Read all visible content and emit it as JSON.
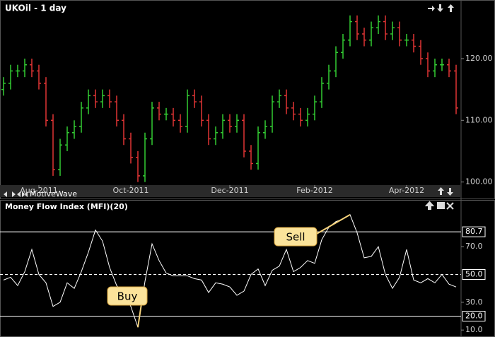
{
  "chart_data": [
    {
      "type": "ohlc",
      "title": "UKOil - 1 day",
      "watermark": "MotiveWave",
      "categories": [
        null,
        null,
        null,
        null,
        null,
        "Aug-2011",
        null,
        null,
        null,
        null,
        null,
        null,
        null,
        null,
        null,
        null,
        null,
        null,
        "Oct-2011",
        null,
        null,
        null,
        null,
        null,
        null,
        null,
        null,
        null,
        null,
        null,
        null,
        null,
        "Dec-2011",
        null,
        null,
        null,
        null,
        null,
        null,
        null,
        null,
        null,
        null,
        null,
        "Feb-2012",
        null,
        null,
        null,
        null,
        null,
        null,
        null,
        null,
        null,
        null,
        null,
        null,
        "Apr-2012",
        null,
        null,
        null,
        null,
        null,
        null,
        null
      ],
      "open": [
        115,
        116,
        118,
        118,
        119,
        118,
        116,
        110,
        102,
        106,
        108,
        109,
        112,
        114,
        113,
        114,
        113,
        110,
        107,
        104,
        101,
        107,
        112,
        111,
        111,
        110,
        109,
        114,
        113,
        110,
        107,
        108,
        110,
        109,
        110,
        105,
        103,
        108,
        109,
        113,
        114,
        112,
        111,
        110,
        111,
        113,
        116,
        118,
        121,
        123,
        126,
        124,
        123,
        125,
        126,
        124,
        125,
        123,
        123,
        122,
        120,
        118,
        119,
        119,
        118
      ],
      "high": [
        117,
        119,
        119,
        120,
        120,
        119,
        117,
        111,
        107,
        109,
        110,
        113,
        115,
        115,
        115,
        115,
        114,
        111,
        108,
        105,
        108,
        113,
        113,
        112,
        112,
        111,
        115,
        115,
        114,
        111,
        109,
        111,
        111,
        111,
        111,
        106,
        109,
        110,
        114,
        115,
        115,
        113,
        112,
        112,
        114,
        117,
        119,
        122,
        124,
        127,
        127,
        125,
        126,
        127,
        127,
        126,
        126,
        124,
        124,
        123,
        121,
        120,
        120,
        120,
        119
      ],
      "low": [
        114,
        115,
        117,
        117,
        117,
        115,
        109,
        101,
        101,
        105,
        107,
        108,
        111,
        112,
        112,
        112,
        109,
        106,
        103,
        100,
        100,
        106,
        110,
        110,
        109,
        108,
        108,
        112,
        109,
        106,
        106,
        107,
        108,
        108,
        104,
        102,
        102,
        107,
        108,
        112,
        111,
        110,
        109,
        109,
        110,
        112,
        115,
        117,
        120,
        122,
        123,
        122,
        122,
        124,
        123,
        123,
        122,
        122,
        121,
        119,
        117,
        117,
        118,
        117,
        111
      ],
      "close": [
        116,
        118,
        118,
        119,
        118,
        116,
        110,
        102,
        106,
        108,
        109,
        112,
        114,
        113,
        114,
        113,
        110,
        107,
        104,
        101,
        107,
        112,
        111,
        111,
        110,
        109,
        114,
        113,
        110,
        107,
        108,
        110,
        109,
        110,
        105,
        103,
        108,
        109,
        113,
        114,
        112,
        111,
        110,
        111,
        113,
        116,
        118,
        121,
        123,
        126,
        124,
        123,
        125,
        126,
        124,
        125,
        123,
        123,
        122,
        120,
        118,
        119,
        119,
        118,
        112
      ],
      "up_color": "#33cc33",
      "down_color": "#e03434",
      "ylim": [
        99.5,
        129.5
      ],
      "yticks": [
        {
          "value": 100,
          "label": "100.00"
        },
        {
          "value": 110,
          "label": "110.00"
        },
        {
          "value": 120,
          "label": "120.00"
        }
      ]
    },
    {
      "type": "line",
      "title": "Money Flow Index (MFI)(20)",
      "color": "#ffffff",
      "values": [
        46,
        48,
        42,
        52,
        68,
        50,
        44,
        27,
        30,
        44,
        40,
        52,
        66,
        82,
        74,
        55,
        42,
        36,
        27,
        12,
        45,
        72,
        60,
        51,
        49,
        49,
        49,
        47,
        46,
        37,
        44,
        43,
        41,
        35,
        38,
        50,
        54,
        42,
        53,
        56,
        68,
        52,
        55,
        60,
        58,
        75,
        84,
        88,
        90,
        93,
        80,
        62,
        63,
        70,
        50,
        40,
        48,
        68,
        46,
        44,
        47,
        44,
        50,
        43,
        41
      ],
      "ylim": [
        5,
        96
      ],
      "yticks": [
        {
          "value": 10,
          "label": "10.0"
        },
        {
          "value": 30,
          "label": "30.0"
        },
        {
          "value": 70,
          "label": "70.0"
        }
      ],
      "levels": [
        {
          "value": 80.7,
          "label": "80.7",
          "dashed": false
        },
        {
          "value": 50,
          "label": "50.0",
          "dashed": true
        },
        {
          "value": 20,
          "label": "20.0",
          "dashed": false
        }
      ],
      "annotations": [
        "Sell",
        "Buy"
      ]
    }
  ]
}
